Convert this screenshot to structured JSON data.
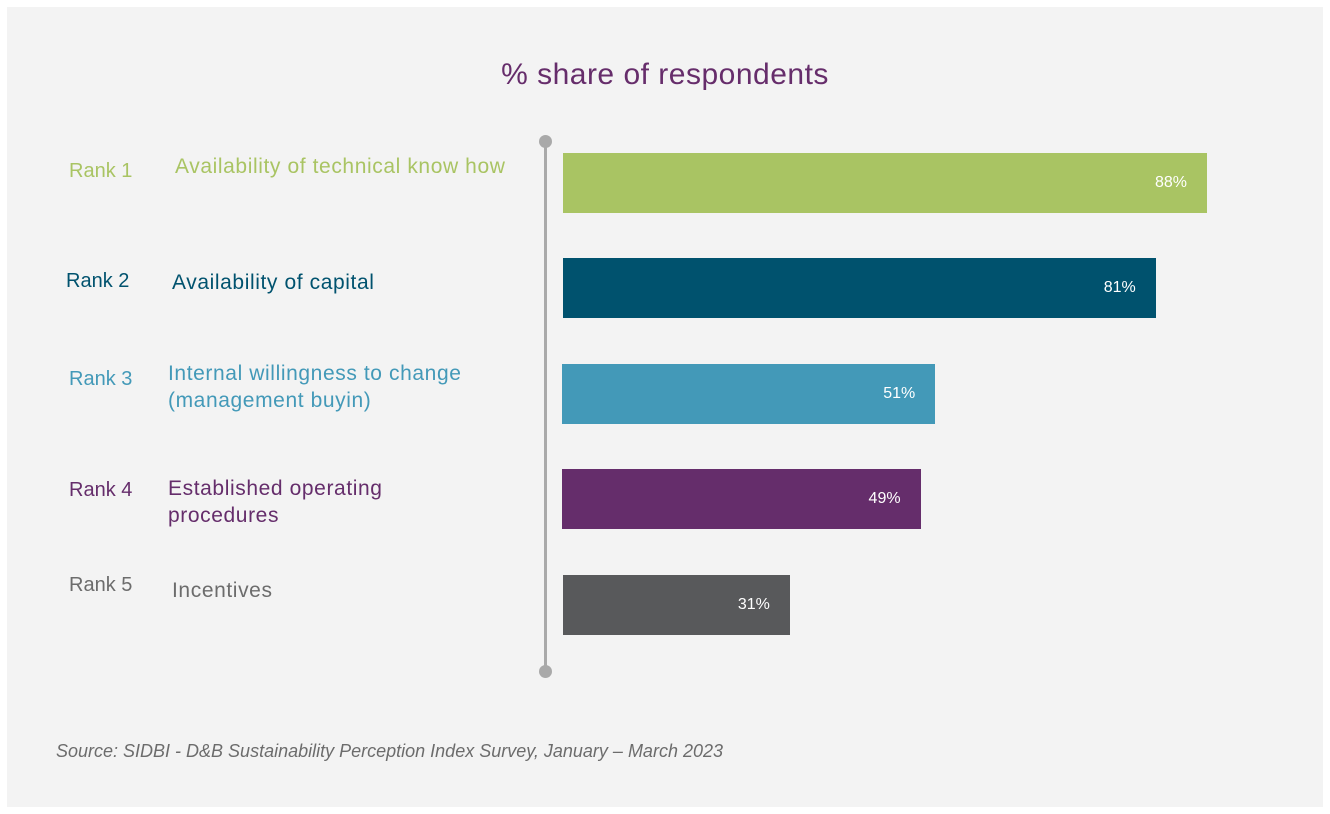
{
  "chart_data": {
    "type": "bar",
    "orientation": "horizontal",
    "title": "% share of respondents",
    "categories": [
      {
        "rank": "Rank 1",
        "label": "Availability of technical know how",
        "value": 88,
        "display": "88%",
        "color": "#a9c463"
      },
      {
        "rank": "Rank 2",
        "label": "Availability of capital",
        "value": 81,
        "display": "81%",
        "color": "#00526e"
      },
      {
        "rank": "Rank 3",
        "label": "Internal willingness to change (management buyin)",
        "value": 51,
        "display": "51%",
        "color": "#4399b8"
      },
      {
        "rank": "Rank 4",
        "label": "Established operating procedures",
        "value": 49,
        "display": "49%",
        "color": "#652d6b"
      },
      {
        "rank": "Rank 5",
        "label": "Incentives",
        "value": 31,
        "display": "31%",
        "color": "#58595b"
      }
    ],
    "label_colors": [
      "#a9c463",
      "#00526e",
      "#4399b8",
      "#652d6b",
      "#6c6c6c"
    ],
    "xlim": [
      0,
      100
    ],
    "grid": false,
    "legend": "none"
  },
  "source": "Source: SIDBI - D&B Sustainability Perception Index Survey, January – March 2023"
}
